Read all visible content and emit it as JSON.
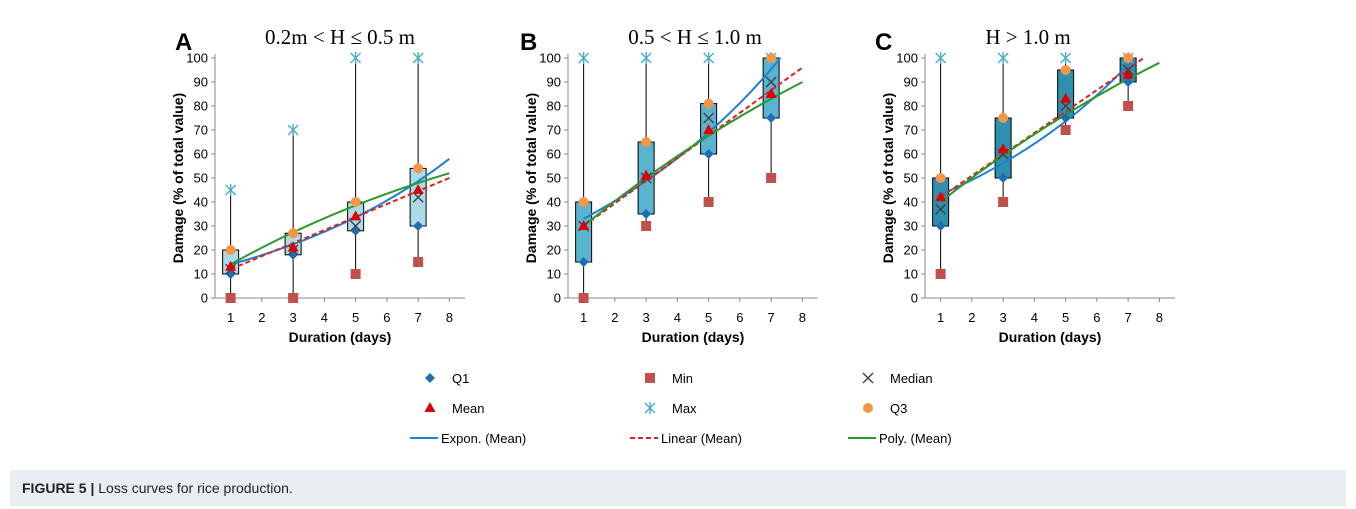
{
  "figure": {
    "caption_label": "FIGURE 5 |",
    "caption_text": " Loss curves for rice production."
  },
  "colors": {
    "q1": "#1f6db5",
    "min": "#c0504d",
    "median": "#404040",
    "mean": "#e00000",
    "max": "#4bacc6",
    "q3": "#f79646",
    "expon": "#1f7fd6",
    "linear": "#e02020",
    "poly": "#2a9a2a",
    "box_light": "#a9dbe8",
    "box_mid": "#5ab4cf",
    "box_dark": "#2e8fae"
  },
  "legend": [
    {
      "key": "q1",
      "label": "Q1",
      "kind": "diamond"
    },
    {
      "key": "min",
      "label": "Min",
      "kind": "square"
    },
    {
      "key": "median",
      "label": "Median",
      "kind": "x"
    },
    {
      "key": "mean",
      "label": "Mean",
      "kind": "triangle"
    },
    {
      "key": "max",
      "label": "Max",
      "kind": "star"
    },
    {
      "key": "q3",
      "label": "Q3",
      "kind": "circle"
    },
    {
      "key": "expon",
      "label": "Expon. (Mean)",
      "kind": "line"
    },
    {
      "key": "linear",
      "label": "Linear (Mean)",
      "kind": "dash"
    },
    {
      "key": "poly",
      "label": "Poly. (Mean)",
      "kind": "line"
    }
  ],
  "chart_data": [
    {
      "type": "box",
      "panel": "A",
      "title": "0.2m < H ≤ 0.5 m",
      "xlabel": "Duration (days)",
      "ylabel": "Damage (% of total value)",
      "xlim": [
        0.5,
        8.5
      ],
      "ylim": [
        0,
        100
      ],
      "xticks": [
        1,
        2,
        3,
        4,
        5,
        6,
        7,
        8
      ],
      "yticks": [
        0,
        10,
        20,
        30,
        40,
        50,
        60,
        70,
        80,
        90,
        100
      ],
      "box_shade": "light",
      "x": [
        1,
        3,
        5,
        7
      ],
      "min": [
        0,
        0,
        10,
        15
      ],
      "q1": [
        10,
        18,
        28,
        30
      ],
      "median": [
        12,
        20,
        30,
        42
      ],
      "mean": [
        13,
        21,
        34,
        45
      ],
      "q3": [
        20,
        27,
        40,
        54
      ],
      "max": [
        45,
        70,
        100,
        100
      ],
      "trend": {
        "expon": [
          [
            1,
            14
          ],
          [
            8,
            58
          ]
        ],
        "linear": [
          [
            1,
            12
          ],
          [
            8,
            50
          ]
        ],
        "poly": [
          [
            1,
            14
          ],
          [
            8,
            52
          ]
        ]
      }
    },
    {
      "type": "box",
      "panel": "B",
      "title": "0.5 < H ≤ 1.0 m",
      "xlabel": "Duration (days)",
      "ylabel": "Damage (% of total value)",
      "xlim": [
        0.5,
        8.5
      ],
      "ylim": [
        0,
        100
      ],
      "xticks": [
        1,
        2,
        3,
        4,
        5,
        6,
        7,
        8
      ],
      "yticks": [
        0,
        10,
        20,
        30,
        40,
        50,
        60,
        70,
        80,
        90,
        100
      ],
      "box_shade": "mid",
      "x": [
        1,
        3,
        5,
        7
      ],
      "min": [
        0,
        30,
        40,
        50
      ],
      "q1": [
        15,
        35,
        60,
        75
      ],
      "median": [
        30,
        50,
        75,
        90
      ],
      "mean": [
        30,
        51,
        70,
        85
      ],
      "q3": [
        40,
        65,
        81,
        100
      ],
      "max": [
        100,
        100,
        100,
        100
      ],
      "trend": {
        "expon": [
          [
            1,
            33
          ],
          [
            7.3,
            100
          ]
        ],
        "linear": [
          [
            1,
            30
          ],
          [
            8,
            96
          ]
        ],
        "poly": [
          [
            1,
            30
          ],
          [
            8,
            90
          ]
        ]
      }
    },
    {
      "type": "box",
      "panel": "C",
      "title": "H > 1.0 m",
      "xlabel": "Duration (days)",
      "ylabel": "Damage (% of total value)",
      "xlim": [
        0.5,
        8.5
      ],
      "ylim": [
        0,
        100
      ],
      "xticks": [
        1,
        2,
        3,
        4,
        5,
        6,
        7,
        8
      ],
      "yticks": [
        0,
        10,
        20,
        30,
        40,
        50,
        60,
        70,
        80,
        90,
        100
      ],
      "box_shade": "dark",
      "x": [
        1,
        3,
        5,
        7
      ],
      "min": [
        10,
        40,
        70,
        80
      ],
      "q1": [
        30,
        50,
        75,
        90
      ],
      "median": [
        37,
        60,
        80,
        95
      ],
      "mean": [
        42,
        62,
        83,
        93
      ],
      "q3": [
        50,
        75,
        95,
        100
      ],
      "max": [
        100,
        100,
        100,
        100
      ],
      "trend": {
        "expon": [
          [
            1,
            43
          ],
          [
            7.2,
            100
          ]
        ],
        "linear": [
          [
            1,
            42
          ],
          [
            7.5,
            100
          ]
        ],
        "poly": [
          [
            1,
            40
          ],
          [
            8,
            98
          ]
        ]
      }
    }
  ]
}
